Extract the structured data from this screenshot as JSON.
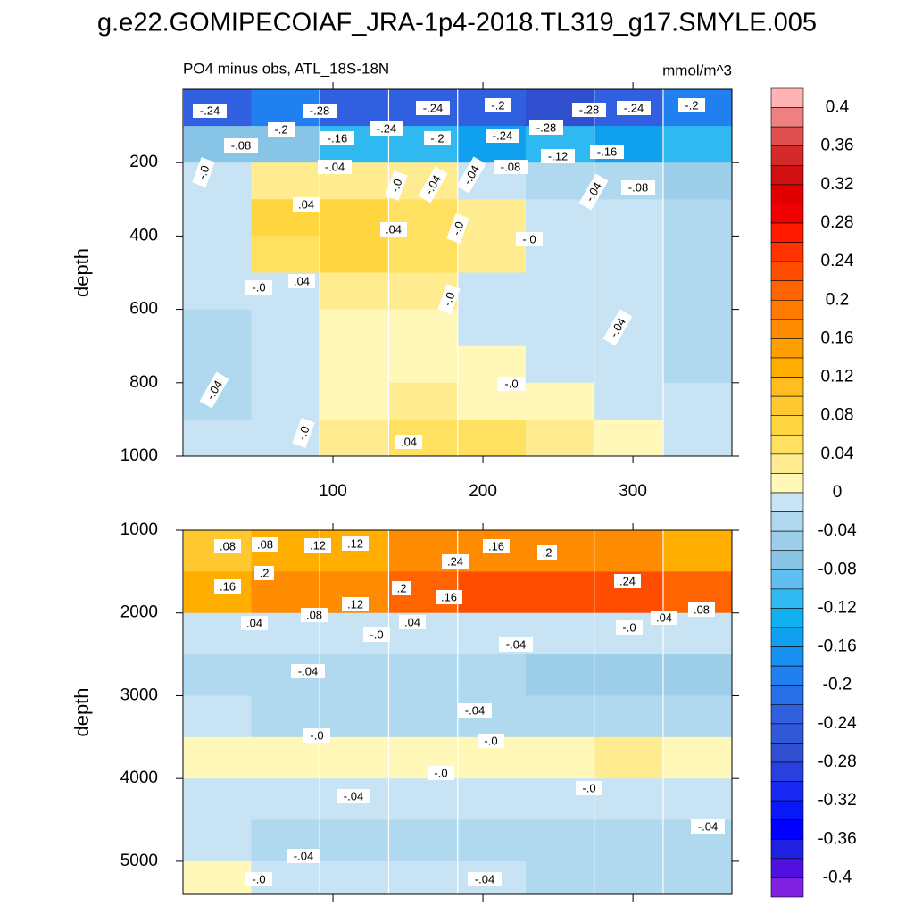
{
  "chart_data": [
    {
      "type": "contour",
      "title": "g.e22.GOMIPECOIAF_JRA-1p4-2018.TL319_g17.SMYLE.005",
      "subtitle": "PO4 minus obs, ATL_18S-18N",
      "units": "mmol/m^3",
      "ylabel": "depth",
      "xlim": [
        0,
        366
      ],
      "xticks": [
        100,
        200,
        300
      ],
      "ylim": [
        1000,
        0
      ],
      "yticks": [
        200,
        400,
        600,
        800,
        1000
      ],
      "x": [
        23,
        68,
        114,
        160,
        206,
        251,
        297,
        343
      ],
      "y": [
        50,
        150,
        250,
        350,
        450,
        550,
        650,
        750,
        850,
        950
      ],
      "z": [
        [
          -0.24,
          -0.2,
          -0.24,
          -0.24,
          -0.24,
          -0.28,
          -0.24,
          -0.2
        ],
        [
          -0.08,
          -0.08,
          -0.12,
          -0.12,
          -0.16,
          -0.12,
          -0.16,
          -0.12
        ],
        [
          -0.02,
          0.02,
          0.02,
          0.02,
          -0.02,
          -0.04,
          -0.04,
          -0.06
        ],
        [
          -0.02,
          0.06,
          0.06,
          0.04,
          0.02,
          -0.02,
          -0.02,
          -0.04
        ],
        [
          -0.02,
          0.04,
          0.06,
          0.04,
          0.02,
          -0.02,
          -0.02,
          -0.04
        ],
        [
          -0.02,
          -0.02,
          0.02,
          0.02,
          -0.01,
          -0.02,
          -0.02,
          -0.04
        ],
        [
          -0.04,
          -0.02,
          0.01,
          0.01,
          -0.02,
          -0.02,
          -0.02,
          -0.04
        ],
        [
          -0.04,
          -0.02,
          0.01,
          0.01,
          0.01,
          -0.02,
          -0.02,
          -0.04
        ],
        [
          -0.04,
          -0.02,
          0.01,
          0.02,
          0.01,
          0.01,
          -0.02,
          -0.02
        ],
        [
          -0.02,
          -0.02,
          0.02,
          0.04,
          0.04,
          0.02,
          0.01,
          -0.02
        ]
      ],
      "contour_labels": [
        "-.24",
        "-.28",
        "-.24",
        "-.2",
        "-.28",
        "-.24",
        "-.2",
        "-.2",
        "-.16",
        "-.24",
        "-.2",
        "-.24",
        "-.28",
        "-.08",
        "-.12",
        "-.16",
        "-.04",
        "-.08",
        "-.0",
        "-.04",
        "-.04",
        "-.04",
        "-.08",
        ".04",
        "-.0",
        ".04",
        "-.0",
        "-.0",
        "-.0",
        ".04",
        "-.0",
        "-.04",
        "-.0",
        "-.04",
        "-.0",
        ".04"
      ],
      "colorbar": {
        "ticks": [
          0.4,
          0.36,
          0.32,
          0.28,
          0.24,
          0.2,
          0.16,
          0.12,
          0.08,
          0.04,
          0,
          -0.04,
          -0.08,
          -0.12,
          -0.16,
          -0.2,
          -0.24,
          -0.28,
          -0.32,
          -0.36,
          -0.4
        ],
        "colors": [
          "#ffb3b3",
          "#f08080",
          "#e05050",
          "#d42a2a",
          "#d01010",
          "#e00000",
          "#f00000",
          "#ff1a00",
          "#ff3300",
          "#ff4d00",
          "#ff6400",
          "#ff7a00",
          "#ff8c00",
          "#ff9e00",
          "#ffae00",
          "#ffbd20",
          "#ffc830",
          "#ffd640",
          "#ffe060",
          "#ffec90",
          "#fff8b8",
          "#c8e4f4",
          "#b0d8ee",
          "#9ccee9",
          "#88c4e6",
          "#60bff0",
          "#30b8f0",
          "#10b0f0",
          "#10a0f0",
          "#1890f0",
          "#2080f0",
          "#2870e8",
          "#3060e0",
          "#3058d8",
          "#3050d0",
          "#2840e0",
          "#1828f0",
          "#0818f8",
          "#0000ff",
          "#2020e0",
          "#5010e0",
          "#8020e0"
        ]
      }
    },
    {
      "type": "contour",
      "ylabel": "depth",
      "xlim": [
        0,
        366
      ],
      "xticks": [
        100,
        200,
        300
      ],
      "ylim": [
        5400,
        1000
      ],
      "yticks": [
        1000,
        2000,
        3000,
        4000,
        5000
      ],
      "x": [
        23,
        68,
        114,
        160,
        206,
        251,
        297,
        343
      ],
      "y": [
        1250,
        1750,
        2250,
        2750,
        3250,
        3750,
        4250,
        4750,
        5250
      ],
      "z": [
        [
          0.08,
          0.12,
          0.12,
          0.16,
          0.16,
          0.16,
          0.16,
          0.12
        ],
        [
          0.12,
          0.16,
          0.16,
          0.2,
          0.22,
          0.22,
          0.22,
          0.2
        ],
        [
          -0.02,
          -0.02,
          -0.02,
          -0.02,
          -0.02,
          -0.02,
          -0.02,
          -0.02
        ],
        [
          -0.04,
          -0.04,
          -0.04,
          -0.04,
          -0.04,
          -0.06,
          -0.06,
          -0.06
        ],
        [
          -0.02,
          -0.04,
          -0.04,
          -0.04,
          -0.04,
          -0.04,
          -0.04,
          -0.04
        ],
        [
          0.01,
          0.01,
          0.01,
          0.01,
          0.01,
          0.01,
          0.02,
          0.01
        ],
        [
          -0.02,
          -0.02,
          -0.02,
          -0.02,
          -0.02,
          -0.02,
          -0.02,
          -0.02
        ],
        [
          -0.02,
          -0.04,
          -0.04,
          -0.04,
          -0.04,
          -0.04,
          -0.04,
          -0.04
        ],
        [
          0.01,
          -0.02,
          -0.02,
          -0.02,
          -0.02,
          -0.04,
          -0.04,
          -0.04
        ]
      ],
      "contour_labels": [
        ".08",
        ".08",
        ".12",
        ".12",
        ".16",
        ".2",
        ".24",
        ".2",
        ".16",
        ".2",
        ".16",
        ".24",
        ".08",
        ".12",
        ".04",
        "-.0",
        ".04",
        ".04",
        "-.0",
        ".08",
        "-.04",
        "-.04",
        "-.04",
        "-.0",
        "-.0",
        "-.0",
        "-.0",
        "-.04",
        "-.04",
        "-.04",
        "-.0",
        "-.04"
      ]
    }
  ]
}
